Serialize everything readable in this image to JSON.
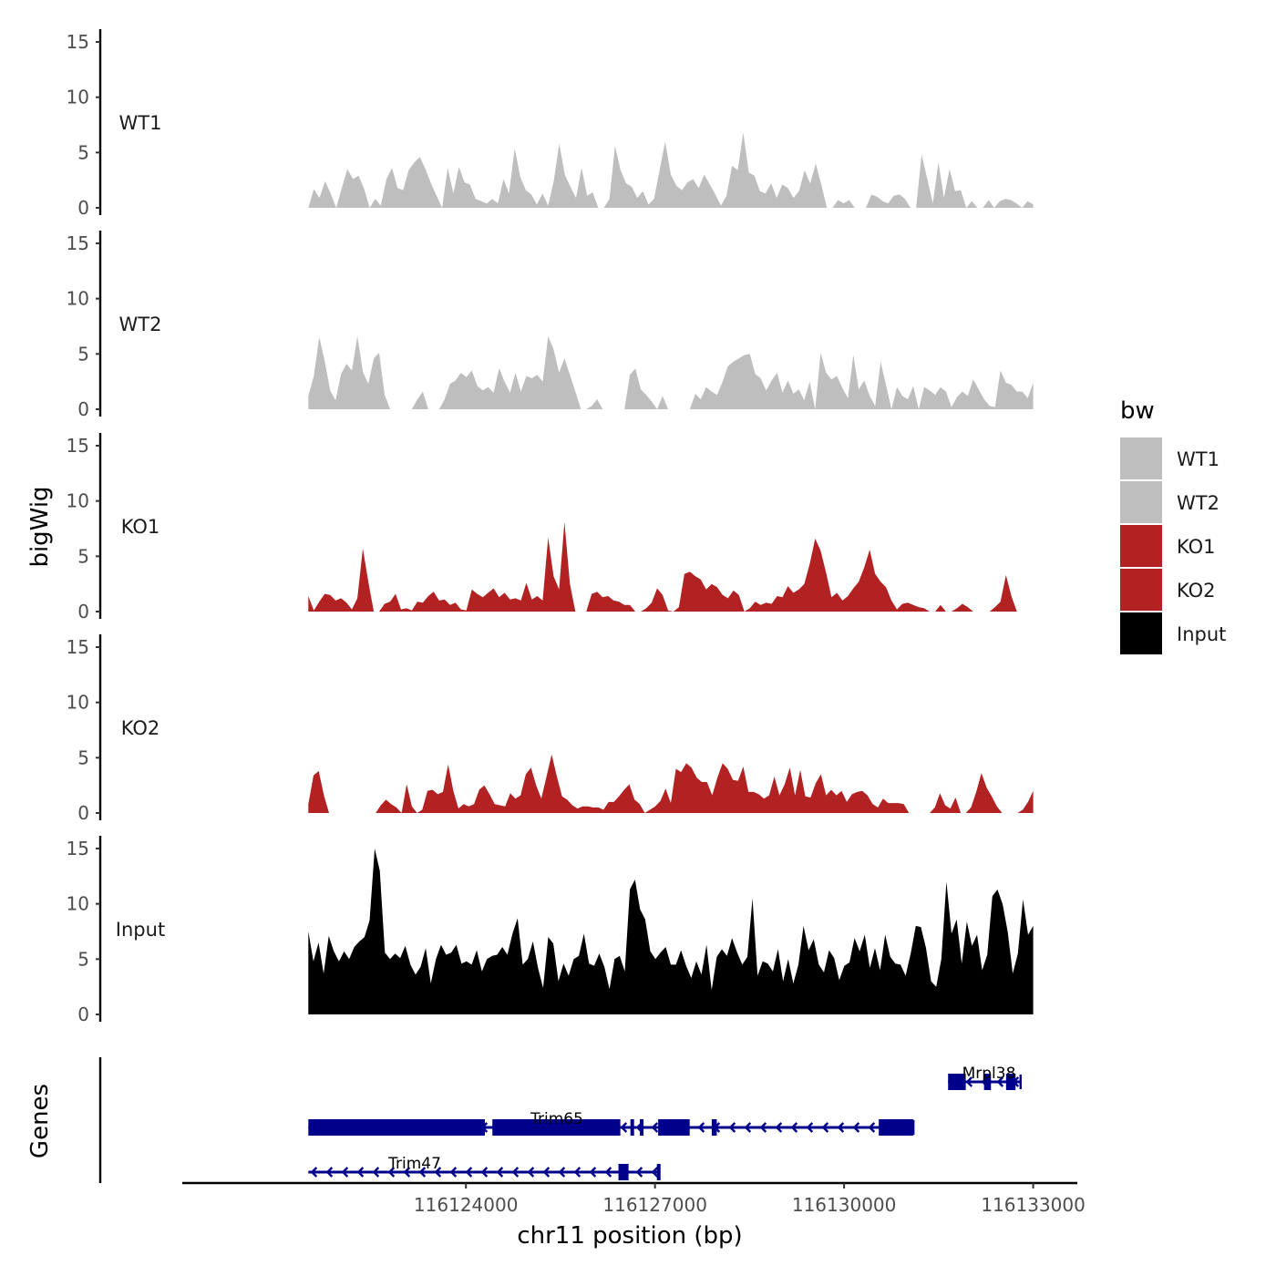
{
  "chart_data": {
    "type": "area",
    "y_axis_label": "bigWig",
    "genes_axis_label": "Genes",
    "x_axis_label": "chr11 position (bp)",
    "x_range": [
      116121500,
      116133000
    ],
    "x_view": [
      116119500,
      116133700
    ],
    "x_ticks": [
      116124000,
      116127000,
      116130000,
      116133000
    ],
    "x_tick_labels": [
      "116124000",
      "116127000",
      "116130000",
      "116133000"
    ],
    "y_range": [
      0,
      15
    ],
    "y_ticks": [
      0,
      5,
      10,
      15
    ],
    "y_tick_labels": [
      "0",
      "5",
      "10",
      "15"
    ],
    "legend": {
      "title": "bw",
      "entries": [
        {
          "label": "WT1",
          "color": "#bebebe"
        },
        {
          "label": "WT2",
          "color": "#bebebe"
        },
        {
          "label": "KO1",
          "color": "#b22222"
        },
        {
          "label": "KO2",
          "color": "#b22222"
        },
        {
          "label": "Input",
          "color": "#000000"
        }
      ]
    },
    "tracks": [
      {
        "name": "WT1",
        "color": "#bebebe",
        "values": [
          0,
          1.7,
          0.9,
          2.4,
          1.3,
          0,
          1.8,
          3.5,
          2.6,
          2.9,
          1.7,
          0,
          0.8,
          0.2,
          2.6,
          3.6,
          1.8,
          1.6,
          3.4,
          4.1,
          4.6,
          3.5,
          2.2,
          1.1,
          0,
          3.6,
          1.3,
          3.7,
          2.3,
          2.1,
          0.8,
          0.6,
          0.4,
          0.8,
          0.4,
          2.6,
          1.3,
          5.4,
          2.8,
          1.6,
          1.2,
          0.3,
          1.3,
          0.2,
          2.4,
          5.8,
          3.0,
          1.9,
          0.9,
          3.6,
          1.1,
          1.4,
          0,
          0,
          0.8,
          5.6,
          3.4,
          2.2,
          1.9,
          0.9,
          1.5,
          0.3,
          0.8,
          3.4,
          6.0,
          3.0,
          2.0,
          1.6,
          2.3,
          2.6,
          1.8,
          3.0,
          2.1,
          1.2,
          0.2,
          1.1,
          3.8,
          3.4,
          6.8,
          3.2,
          2.9,
          1.5,
          1.3,
          2.2,
          0.9,
          2.1,
          1.8,
          0.9,
          1.5,
          3.4,
          2.2,
          4.0,
          2.1,
          0,
          0,
          0.7,
          0.4,
          0.7,
          0,
          0,
          0,
          1.2,
          1.0,
          0.6,
          0.4,
          1.1,
          1.2,
          0.8,
          0,
          0,
          4.8,
          2.6,
          0.4,
          4.1,
          0.9,
          3.5,
          1.5,
          1.6,
          0,
          0.6,
          0,
          0,
          0.7,
          0,
          0.6,
          0.8,
          0.7,
          0.4,
          0,
          0.6,
          0.3
        ]
      },
      {
        "name": "WT2",
        "color": "#bebebe",
        "values": [
          1.2,
          3.0,
          6.5,
          4.4,
          1.7,
          0.8,
          3.2,
          4.1,
          3.5,
          6.6,
          3.4,
          2.3,
          4.6,
          5.1,
          1.3,
          0,
          0,
          0,
          0,
          0,
          0.9,
          1.6,
          0,
          0,
          0,
          0.9,
          2.3,
          2.6,
          3.3,
          2.9,
          3.5,
          2.1,
          1.7,
          2.0,
          1.5,
          3.7,
          2.5,
          1.5,
          3.3,
          1.6,
          3.0,
          2.8,
          3.1,
          2.5,
          6.6,
          5.4,
          3.3,
          4.6,
          3.1,
          1.6,
          0,
          0,
          0.3,
          0.9,
          0,
          0,
          0,
          0,
          0,
          3.1,
          3.7,
          1.8,
          1.3,
          0.7,
          0,
          1.2,
          0,
          0,
          0,
          0,
          0,
          1.4,
          0.9,
          2.0,
          1.6,
          1.3,
          2.5,
          3.9,
          4.3,
          4.6,
          4.9,
          5.0,
          3.2,
          2.8,
          1.7,
          2.6,
          3.3,
          1.5,
          2.6,
          1.4,
          1.8,
          0.8,
          2.5,
          0,
          5.1,
          3.3,
          2.7,
          3.0,
          1.9,
          1.0,
          4.9,
          1.8,
          2.6,
          1.2,
          0.3,
          4.3,
          2.2,
          0,
          2.0,
          1.2,
          0.9,
          2.1,
          0,
          2.0,
          1.7,
          1.3,
          2.0,
          1.6,
          0.2,
          1.1,
          1.6,
          1.2,
          2.7,
          1.8,
          0.9,
          0.3,
          0.2,
          3.5,
          2.4,
          2.2,
          1.6,
          1.6,
          1.0,
          2.4
        ]
      },
      {
        "name": "KO1",
        "color": "#b22222",
        "values": [
          1.4,
          0.1,
          0.9,
          1.6,
          1.5,
          1.0,
          1.2,
          0.8,
          0.2,
          1.2,
          5.7,
          2.7,
          0,
          0,
          0.7,
          0.9,
          1.6,
          0.2,
          0.3,
          0.1,
          0.9,
          0.8,
          1.4,
          1.8,
          1.0,
          1.1,
          0.6,
          0.8,
          0.2,
          0.1,
          2.0,
          1.6,
          1.3,
          1.7,
          2.1,
          1.3,
          1.7,
          1.1,
          1.2,
          1.0,
          2.6,
          1.1,
          1.4,
          1.0,
          6.7,
          3.2,
          2.0,
          8.1,
          2.5,
          0,
          0,
          0,
          1.6,
          1.8,
          1.3,
          1.4,
          1.0,
          0.9,
          0.6,
          0.6,
          0,
          0,
          0.3,
          0.8,
          2.1,
          1.5,
          0.1,
          0,
          0.4,
          3.4,
          3.6,
          3.2,
          2.9,
          2.0,
          2.5,
          2.2,
          1.5,
          1.2,
          1.9,
          1.5,
          0,
          0.3,
          0.9,
          0.6,
          0.8,
          0.7,
          1.4,
          1.3,
          2.3,
          1.7,
          2.0,
          2.5,
          4.3,
          6.6,
          5.5,
          3.5,
          1.3,
          1.7,
          1.0,
          1.4,
          2.1,
          2.7,
          4.0,
          5.6,
          3.4,
          2.7,
          2.2,
          1.0,
          0.2,
          0.7,
          0.8,
          0.6,
          0.4,
          0.3,
          0,
          0,
          0.6,
          0,
          0,
          0.3,
          0.7,
          0.4,
          0,
          0,
          0,
          0,
          0.4,
          0.9,
          3.3,
          1.4,
          0,
          0,
          0,
          0
        ]
      },
      {
        "name": "KO2",
        "color": "#b22222",
        "values": [
          0.8,
          3.4,
          3.8,
          1.6,
          0,
          0,
          0,
          0,
          0,
          0,
          0,
          0,
          0,
          0,
          0.7,
          1.2,
          0.8,
          0.5,
          0,
          2.6,
          0.6,
          0,
          0.3,
          2.0,
          2.1,
          1.7,
          1.9,
          4.4,
          2.0,
          0.4,
          0.8,
          0.6,
          0.8,
          2.1,
          2.5,
          1.7,
          0.8,
          0.7,
          0.6,
          1.8,
          1.3,
          1.6,
          3.5,
          4.1,
          2.5,
          1.3,
          3.3,
          5.3,
          3.3,
          1.5,
          1.2,
          0.7,
          0.4,
          0.6,
          0.6,
          0.5,
          0.5,
          0.3,
          1.0,
          1.0,
          1.5,
          2.1,
          2.6,
          1.2,
          0.8,
          0,
          0.3,
          0.6,
          1.1,
          2.2,
          0.9,
          4.0,
          3.7,
          4.5,
          4.1,
          3.2,
          2.8,
          2.8,
          1.6,
          3.2,
          4.5,
          4.0,
          3.0,
          2.9,
          4.2,
          1.9,
          1.9,
          1.7,
          1.3,
          1.6,
          3.3,
          1.6,
          2.6,
          4.1,
          1.6,
          3.9,
          1.5,
          1.4,
          2.7,
          3.5,
          1.6,
          2.1,
          1.6,
          2.0,
          1.0,
          1.7,
          1.9,
          2.0,
          1.6,
          0.8,
          0.5,
          1.3,
          0.9,
          0.9,
          0.9,
          0.8,
          0,
          0,
          0,
          0,
          0,
          0.5,
          1.8,
          0.7,
          0.4,
          1.4,
          0,
          0,
          0.5,
          1.9,
          3.6,
          2.3,
          1.5,
          0.6,
          0,
          0,
          0,
          0,
          0.3,
          1.0,
          2.0
        ]
      },
      {
        "name": "Input",
        "color": "#000000",
        "values": [
          7.5,
          4.8,
          6.5,
          3.7,
          7.1,
          5.7,
          4.8,
          5.7,
          5.0,
          6.1,
          6.6,
          7.0,
          8.5,
          15.0,
          13.0,
          5.6,
          5.0,
          5.5,
          5.1,
          6.2,
          4.5,
          3.6,
          4.3,
          6.0,
          2.8,
          5.0,
          6.3,
          5.4,
          5.6,
          6.3,
          4.6,
          4.8,
          4.5,
          5.8,
          3.9,
          5.0,
          5.3,
          5.4,
          6.1,
          5.4,
          7.3,
          8.7,
          4.5,
          5.0,
          6.6,
          4.2,
          2.4,
          7.0,
          6.4,
          3.0,
          4.6,
          3.5,
          5.0,
          5.3,
          7.3,
          4.6,
          4.4,
          5.5,
          4.3,
          2.3,
          5.0,
          5.3,
          3.9,
          11.3,
          12.2,
          9.5,
          8.6,
          5.7,
          5.0,
          5.6,
          6.1,
          4.5,
          4.5,
          5.8,
          4.4,
          3.3,
          4.8,
          3.6,
          6.3,
          2.2,
          5.2,
          5.9,
          5.3,
          6.9,
          5.6,
          4.5,
          5.2,
          10.5,
          3.5,
          4.8,
          4.6,
          3.9,
          5.9,
          3.0,
          5.0,
          2.8,
          4.5,
          8.0,
          5.8,
          6.8,
          4.5,
          3.8,
          5.8,
          5.1,
          3.1,
          4.4,
          4.7,
          6.9,
          5.7,
          7.2,
          4.2,
          6.0,
          4.0,
          7.2,
          5.2,
          4.6,
          4.5,
          3.5,
          5.5,
          8.0,
          7.9,
          6.0,
          3.0,
          2.5,
          5.0,
          12.0,
          7.3,
          8.6,
          4.6,
          8.4,
          6.2,
          7.2,
          4.0,
          5.4,
          10.7,
          11.3,
          10.0,
          7.5,
          3.7,
          5.5,
          10.4,
          7.2,
          8.0
        ]
      }
    ],
    "genes": [
      {
        "name": "Mrpl38",
        "start": 116131650,
        "end": 116132800,
        "strand": "-",
        "row": 0,
        "exons": [
          [
            116131650,
            116131930
          ],
          [
            116132220,
            116132330
          ],
          [
            116132570,
            116132720
          ]
        ]
      },
      {
        "name": "Trim65",
        "start": 116121500,
        "end": 116131100,
        "strand": "-",
        "row": 1,
        "exons": [
          [
            116121500,
            116124300
          ],
          [
            116124420,
            116126450
          ],
          [
            116126610,
            116126640
          ],
          [
            116126760,
            116126790
          ],
          [
            116127050,
            116127550
          ],
          [
            116127900,
            116127980
          ],
          [
            116130550,
            116131100
          ]
        ]
      },
      {
        "name": "Trim47",
        "start": 116121500,
        "end": 116127050,
        "strand": "-",
        "row": 2,
        "exons": [
          [
            116126420,
            116126580
          ],
          [
            116127030,
            116127050
          ]
        ]
      }
    ]
  }
}
